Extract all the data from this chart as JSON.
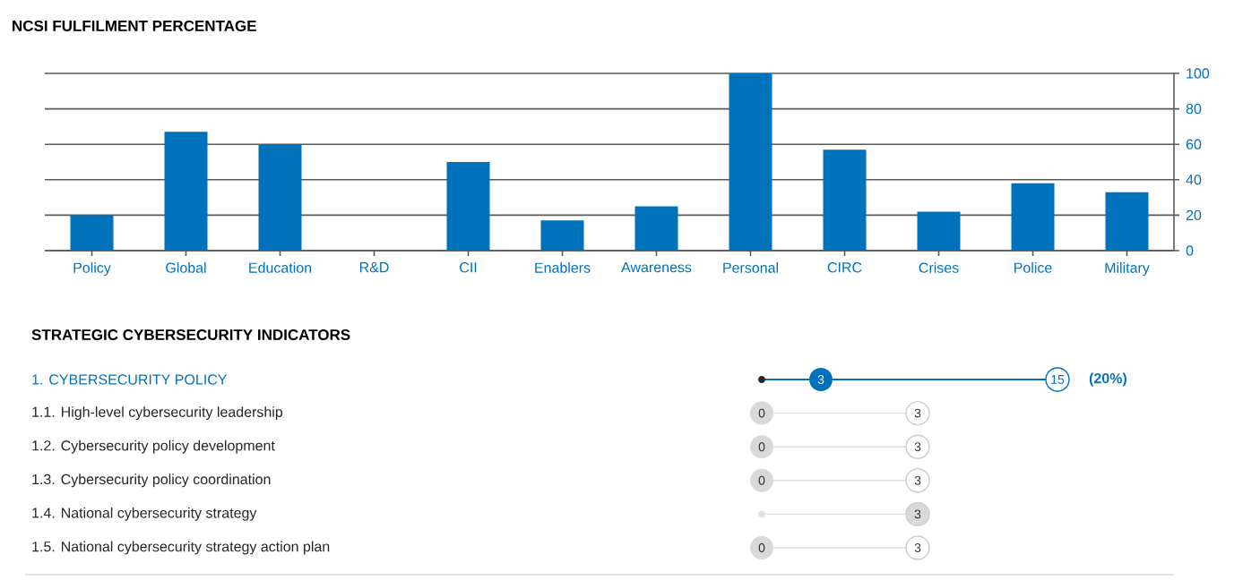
{
  "chart_data": [
    {
      "type": "bar",
      "title": "NCSI FULFILMENT PERCENTAGE",
      "categories": [
        "Policy",
        "Global",
        "Education",
        "R&D",
        "CII",
        "Enablers",
        "Awareness",
        "Personal",
        "CIRC",
        "Crises",
        "Police",
        "Military"
      ],
      "values": [
        20,
        67,
        60,
        0,
        50,
        17,
        25,
        100,
        57,
        22,
        38,
        33
      ],
      "color": "#0072bc",
      "ylim": [
        0,
        100
      ],
      "yticks": [
        0,
        20,
        40,
        60,
        80,
        100
      ],
      "grid": "y"
    },
    {
      "type": "other",
      "title": "STRATEGIC CYBERSECURITY INDICATORS",
      "categories": [
        "1. CYBERSECURITY POLICY",
        "1.1. High-level cybersecurity leadership",
        "1.2. Cybersecurity policy development",
        "1.3. Cybersecurity policy coordination",
        "1.4. National cybersecurity strategy",
        "1.5. National cybersecurity strategy action plan"
      ],
      "series": [
        {
          "values": [
            3,
            0,
            0,
            0,
            null,
            0
          ],
          "colors": [
            "#0072bc",
            "#d9d9d9",
            "#d9d9d9",
            "#d9d9d9",
            "#d9d9d9",
            "#d9d9d9"
          ]
        },
        {
          "values": [
            15,
            3,
            3,
            3,
            3,
            3
          ],
          "colors": [
            "#ffffff",
            "#ffffff",
            "#ffffff",
            "#ffffff",
            "#d9d9d9",
            "#ffffff"
          ]
        }
      ],
      "data_labels": true,
      "annotations": [
        "(20%)"
      ]
    }
  ]
}
